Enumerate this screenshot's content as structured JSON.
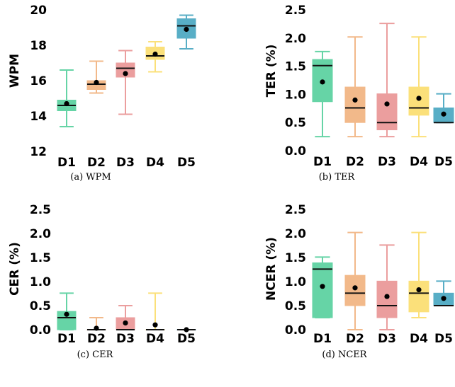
{
  "colors": [
    "#66d4a6",
    "#f2b98a",
    "#eb9e9e",
    "#fbe07a",
    "#58aec6"
  ],
  "chart_data": [
    {
      "type": "box",
      "caption": "(a) WPM",
      "ylabel": "WPM",
      "ylim": [
        12,
        20
      ],
      "yticks": [
        "12",
        "14",
        "16",
        "18",
        "20"
      ],
      "categories": [
        "D1",
        "D2",
        "D3",
        "D4",
        "D5"
      ],
      "boxes": [
        {
          "whislo": 13.4,
          "q1": 14.3,
          "med": 14.6,
          "q3": 14.9,
          "whishi": 16.6,
          "mean": 14.7
        },
        {
          "whislo": 15.3,
          "q1": 15.5,
          "med": 15.8,
          "q3": 16.0,
          "whishi": 17.1,
          "mean": 15.9
        },
        {
          "whislo": 14.1,
          "q1": 16.2,
          "med": 16.7,
          "q3": 17.0,
          "whishi": 17.7,
          "mean": 16.4
        },
        {
          "whislo": 16.5,
          "q1": 17.2,
          "med": 17.4,
          "q3": 17.9,
          "whishi": 18.2,
          "mean": 17.5
        },
        {
          "whislo": 17.8,
          "q1": 18.4,
          "med": 19.1,
          "q3": 19.5,
          "whishi": 19.7,
          "mean": 18.9
        }
      ]
    },
    {
      "type": "box",
      "caption": "(b) TER",
      "ylabel": "TER (%)",
      "ylim": [
        0,
        2.5
      ],
      "yticks": [
        "0.0",
        "0.5",
        "1.0",
        "1.5",
        "2.0",
        "2.5"
      ],
      "categories": [
        "D1",
        "D2",
        "D3",
        "D4",
        "D5"
      ],
      "boxes": [
        {
          "whislo": 0.25,
          "q1": 0.87,
          "med": 1.51,
          "q3": 1.62,
          "whishi": 1.76,
          "mean": 1.22
        },
        {
          "whislo": 0.25,
          "q1": 0.5,
          "med": 0.76,
          "q3": 1.13,
          "whishi": 2.02,
          "mean": 0.9
        },
        {
          "whislo": 0.25,
          "q1": 0.37,
          "med": 0.5,
          "q3": 1.01,
          "whishi": 2.26,
          "mean": 0.83
        },
        {
          "whislo": 0.25,
          "q1": 0.63,
          "med": 0.76,
          "q3": 1.13,
          "whishi": 2.02,
          "mean": 0.93
        },
        {
          "whislo": 0.5,
          "q1": 0.5,
          "med": 0.5,
          "q3": 0.76,
          "whishi": 1.01,
          "mean": 0.65
        }
      ]
    },
    {
      "type": "box",
      "caption": "(c) CER",
      "ylabel": "CER (%)",
      "ylim": [
        0,
        2.5
      ],
      "yticks": [
        "0.0",
        "0.5",
        "1.0",
        "1.5",
        "2.0",
        "2.5"
      ],
      "categories": [
        "D1",
        "D2",
        "D3",
        "D4",
        "D5"
      ],
      "boxes": [
        {
          "whislo": 0.0,
          "q1": 0.0,
          "med": 0.25,
          "q3": 0.38,
          "whishi": 0.76,
          "mean": 0.32
        },
        {
          "whislo": 0.0,
          "q1": 0.0,
          "med": 0.0,
          "q3": 0.0,
          "whishi": 0.25,
          "mean": 0.03
        },
        {
          "whislo": 0.0,
          "q1": 0.0,
          "med": 0.0,
          "q3": 0.25,
          "whishi": 0.5,
          "mean": 0.14
        },
        {
          "whislo": 0.0,
          "q1": 0.0,
          "med": 0.0,
          "q3": 0.0,
          "whishi": 0.76,
          "mean": 0.1
        },
        {
          "whislo": 0.0,
          "q1": 0.0,
          "med": 0.0,
          "q3": 0.0,
          "whishi": 0.0,
          "mean": 0.0
        }
      ]
    },
    {
      "type": "box",
      "caption": "(d) NCER",
      "ylabel": "NCER (%)",
      "ylim": [
        0,
        2.5
      ],
      "yticks": [
        "0.0",
        "0.5",
        "1.0",
        "1.5",
        "2.0",
        "2.5"
      ],
      "categories": [
        "D1",
        "D2",
        "D3",
        "D4",
        "D5"
      ],
      "boxes": [
        {
          "whislo": 0.25,
          "q1": 0.25,
          "med": 1.26,
          "q3": 1.39,
          "whishi": 1.51,
          "mean": 0.9
        },
        {
          "whislo": 0.0,
          "q1": 0.5,
          "med": 0.76,
          "q3": 1.13,
          "whishi": 2.02,
          "mean": 0.87
        },
        {
          "whislo": 0.0,
          "q1": 0.25,
          "med": 0.5,
          "q3": 1.01,
          "whishi": 1.76,
          "mean": 0.69
        },
        {
          "whislo": 0.25,
          "q1": 0.37,
          "med": 0.76,
          "q3": 1.01,
          "whishi": 2.02,
          "mean": 0.83
        },
        {
          "whislo": 0.5,
          "q1": 0.5,
          "med": 0.5,
          "q3": 0.76,
          "whishi": 1.01,
          "mean": 0.65
        }
      ]
    }
  ]
}
